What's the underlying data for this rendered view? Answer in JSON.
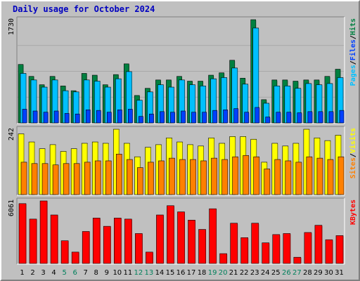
{
  "colors": {
    "background": "#c0c0c0",
    "plot_background": "#c0c0c0",
    "title": "#0000c0",
    "hits": "#008040",
    "files": "#00c0ff",
    "pages": "#0040ff",
    "visits": "#ffff00",
    "sites": "#ff8000",
    "kbytes": "#ff0000",
    "weekend_label": "#00805c",
    "weekday_label": "#000000"
  },
  "chart_data": [
    {
      "type": "bar",
      "title": "Daily usage for October 2024",
      "panel": "hits-files-pages",
      "ymax_label": "1730",
      "legend": [
        {
          "label": "Pages",
          "color": "#00c0ff"
        },
        {
          "label": "/",
          "color": "#000000"
        },
        {
          "label": "Files",
          "color": "#0040ff"
        },
        {
          "label": "/",
          "color": "#000000"
        },
        {
          "label": "Hits",
          "color": "#008040"
        }
      ],
      "categories": [
        "1",
        "2",
        "3",
        "4",
        "5",
        "6",
        "7",
        "8",
        "9",
        "10",
        "11",
        "12",
        "13",
        "14",
        "15",
        "16",
        "17",
        "18",
        "19",
        "20",
        "21",
        "22",
        "23",
        "24",
        "25",
        "26",
        "27",
        "28",
        "29",
        "30",
        "31"
      ],
      "weekend_days": [
        "5",
        "6",
        "12",
        "13",
        "19",
        "20",
        "26",
        "27"
      ],
      "series": [
        {
          "name": "Hits",
          "values": [
            980,
            780,
            640,
            780,
            620,
            540,
            830,
            800,
            640,
            810,
            990,
            460,
            580,
            720,
            720,
            780,
            700,
            700,
            800,
            840,
            1050,
            750,
            1730,
            390,
            720,
            720,
            700,
            720,
            720,
            780,
            900
          ]
        },
        {
          "name": "Files",
          "values": [
            830,
            720,
            600,
            720,
            540,
            520,
            720,
            700,
            600,
            740,
            860,
            380,
            520,
            640,
            600,
            720,
            640,
            620,
            740,
            760,
            920,
            650,
            1590,
            330,
            620,
            620,
            580,
            660,
            640,
            660,
            760
          ]
        },
        {
          "name": "Pages",
          "values": [
            230,
            200,
            180,
            200,
            160,
            150,
            220,
            210,
            180,
            220,
            230,
            110,
            150,
            190,
            180,
            200,
            180,
            180,
            210,
            220,
            240,
            180,
            260,
            100,
            180,
            180,
            170,
            190,
            190,
            190,
            210
          ]
        }
      ]
    },
    {
      "type": "bar",
      "panel": "visits-sites",
      "ymax_label": "242",
      "legend": [
        {
          "label": "Sites",
          "color": "#ff8000"
        },
        {
          "label": "/",
          "color": "#000000"
        },
        {
          "label": "Visits",
          "color": "#ffff00"
        }
      ],
      "categories": [
        "1",
        "2",
        "3",
        "4",
        "5",
        "6",
        "7",
        "8",
        "9",
        "10",
        "11",
        "12",
        "13",
        "14",
        "15",
        "16",
        "17",
        "18",
        "19",
        "20",
        "21",
        "22",
        "23",
        "24",
        "25",
        "26",
        "27",
        "28",
        "29",
        "30",
        "31"
      ],
      "series": [
        {
          "name": "Visits",
          "values": [
            225,
            195,
            170,
            185,
            160,
            170,
            190,
            195,
            190,
            242,
            190,
            140,
            175,
            185,
            210,
            195,
            185,
            180,
            210,
            190,
            215,
            215,
            205,
            120,
            190,
            180,
            190,
            242,
            210,
            200,
            220
          ]
        },
        {
          "name": "Sites",
          "values": [
            120,
            115,
            115,
            110,
            115,
            115,
            120,
            125,
            125,
            150,
            130,
            100,
            120,
            125,
            135,
            130,
            130,
            125,
            135,
            130,
            140,
            145,
            140,
            95,
            130,
            125,
            120,
            140,
            135,
            130,
            140
          ]
        }
      ]
    },
    {
      "type": "bar",
      "panel": "kbytes",
      "ymax_label": "6061",
      "legend": [
        {
          "label": "KBytes",
          "color": "#ff0000"
        }
      ],
      "categories": [
        "1",
        "2",
        "3",
        "4",
        "5",
        "6",
        "7",
        "8",
        "9",
        "10",
        "11",
        "12",
        "13",
        "14",
        "15",
        "16",
        "17",
        "18",
        "19",
        "20",
        "21",
        "22",
        "23",
        "24",
        "25",
        "26",
        "27",
        "28",
        "29",
        "30",
        "31"
      ],
      "series": [
        {
          "name": "KBytes",
          "values": [
            5800,
            4300,
            6061,
            4700,
            2200,
            1100,
            3100,
            4400,
            3600,
            4400,
            4300,
            2900,
            1100,
            4700,
            5600,
            5000,
            4200,
            3300,
            5300,
            950,
            3900,
            2500,
            3900,
            2000,
            2800,
            2900,
            600,
            3000,
            3700,
            2300,
            2700
          ]
        }
      ]
    }
  ]
}
